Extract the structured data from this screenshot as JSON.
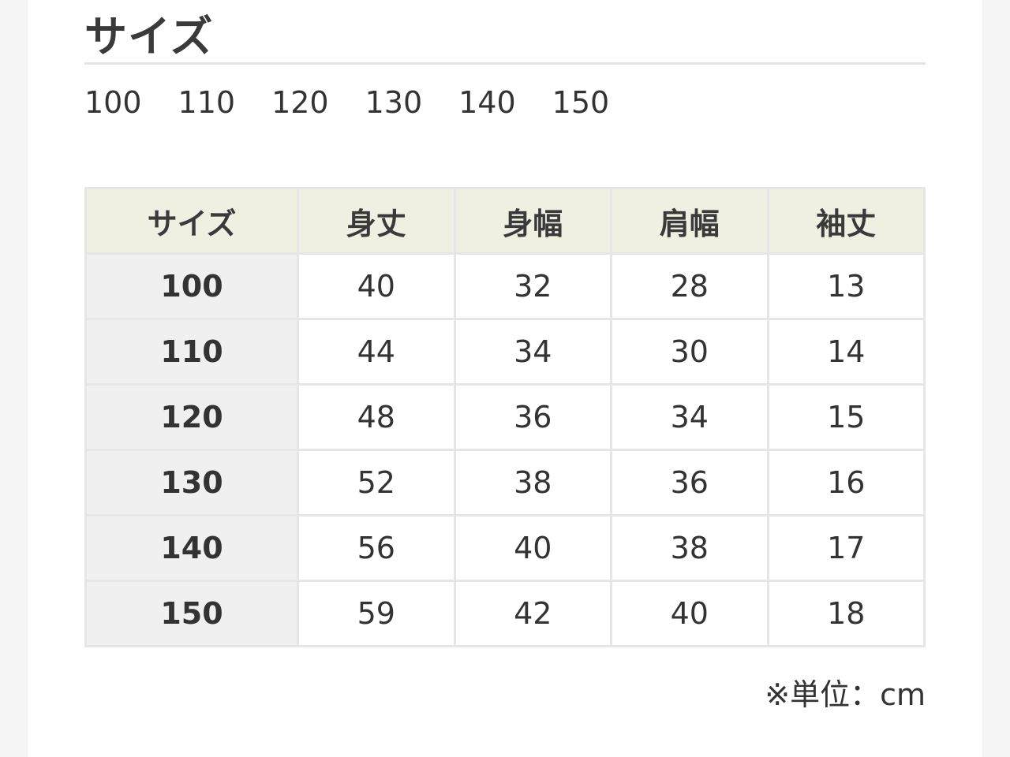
{
  "title": "サイズ",
  "sizes": [
    "100",
    "110",
    "120",
    "130",
    "140",
    "150"
  ],
  "table": {
    "headers": [
      "サイズ",
      "身丈",
      "身幅",
      "肩幅",
      "袖丈"
    ],
    "rows": [
      [
        "100",
        "40",
        "32",
        "28",
        "13"
      ],
      [
        "110",
        "44",
        "34",
        "30",
        "14"
      ],
      [
        "120",
        "48",
        "36",
        "34",
        "15"
      ],
      [
        "130",
        "52",
        "38",
        "36",
        "16"
      ],
      [
        "140",
        "56",
        "40",
        "38",
        "17"
      ],
      [
        "150",
        "59",
        "42",
        "40",
        "18"
      ]
    ]
  },
  "unit": "※単位：cm"
}
